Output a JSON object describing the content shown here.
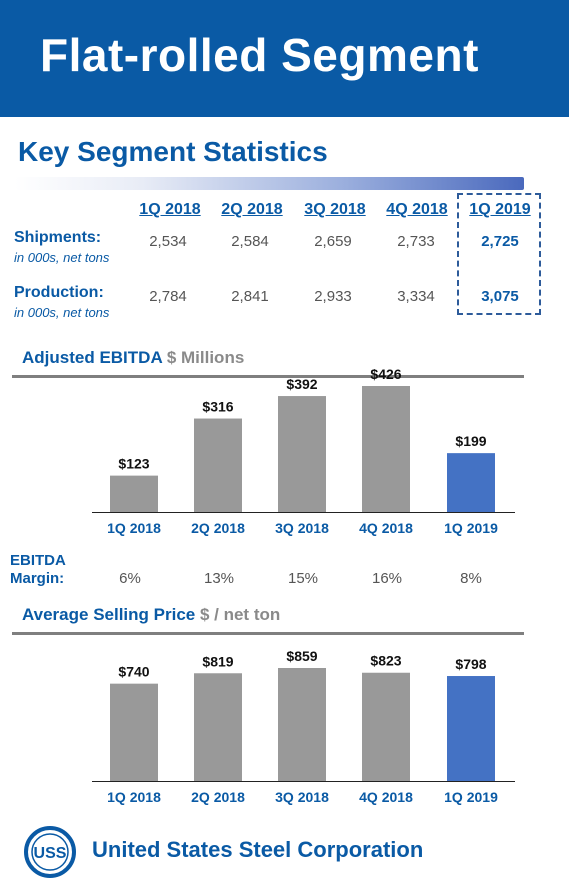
{
  "title": "Flat-rolled Segment",
  "stats": {
    "title": "Key Segment Statistics",
    "quarters": [
      "1Q 2018",
      "2Q 2018",
      "3Q 2018",
      "4Q 2018",
      "1Q 2019"
    ],
    "rows": [
      {
        "label": "Shipments:",
        "sub": "in 000s, net tons",
        "values": [
          "2,534",
          "2,584",
          "2,659",
          "2,733",
          "2,725"
        ]
      },
      {
        "label": "Production:",
        "sub": "in 000s, net tons",
        "values": [
          "2,784",
          "2,841",
          "2,933",
          "3,334",
          "3,075"
        ]
      }
    ]
  },
  "margin": {
    "label_line1": "EBITDA",
    "label_line2": "Margin:",
    "values": [
      "6%",
      "13%",
      "15%",
      "16%",
      "8%"
    ]
  },
  "company": "United States Steel Corporation",
  "logo_text": "USS",
  "colors": {
    "brand": "#0a5aa5",
    "bar": "#999999",
    "highlight": "#4472c4",
    "axis": "#7f7f7f"
  },
  "chart_data": [
    {
      "type": "bar",
      "title": "Adjusted EBITDA",
      "unit": "$ Millions",
      "categories": [
        "1Q 2018",
        "2Q 2018",
        "3Q 2018",
        "4Q 2018",
        "1Q 2019"
      ],
      "values": [
        123,
        316,
        392,
        426,
        199
      ],
      "labels": [
        "$123",
        "$316",
        "$392",
        "$426",
        "$199"
      ],
      "highlight_index": 4,
      "ylim": [
        0,
        426
      ]
    },
    {
      "type": "bar",
      "title": "Average Selling Price",
      "unit": "$ / net ton",
      "categories": [
        "1Q 2018",
        "2Q 2018",
        "3Q 2018",
        "4Q 2018",
        "1Q 2019"
      ],
      "values": [
        740,
        819,
        859,
        823,
        798
      ],
      "labels": [
        "$740",
        "$819",
        "$859",
        "$823",
        "$798"
      ],
      "highlight_index": 4,
      "ylim": [
        0,
        859
      ]
    }
  ]
}
